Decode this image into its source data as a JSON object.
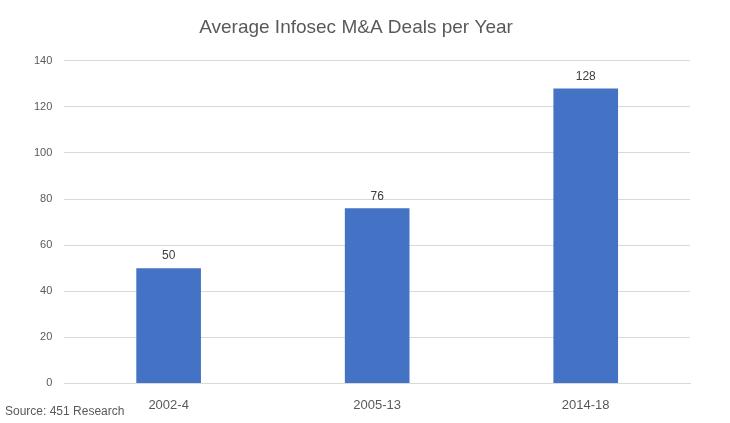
{
  "chart_data": {
    "type": "bar",
    "title": "Average Infosec M&A Deals per Year",
    "annotations": [
      "Source: 451 Research"
    ],
    "categories": [
      "2002-4",
      "2005-13",
      "2014-18"
    ],
    "values": [
      50,
      76,
      128
    ],
    "color": "#4472c4",
    "ylim": [
      0,
      140
    ],
    "yticks": [
      0,
      20,
      40,
      60,
      80,
      100,
      120,
      140
    ],
    "grid": true,
    "data_labels": true
  }
}
